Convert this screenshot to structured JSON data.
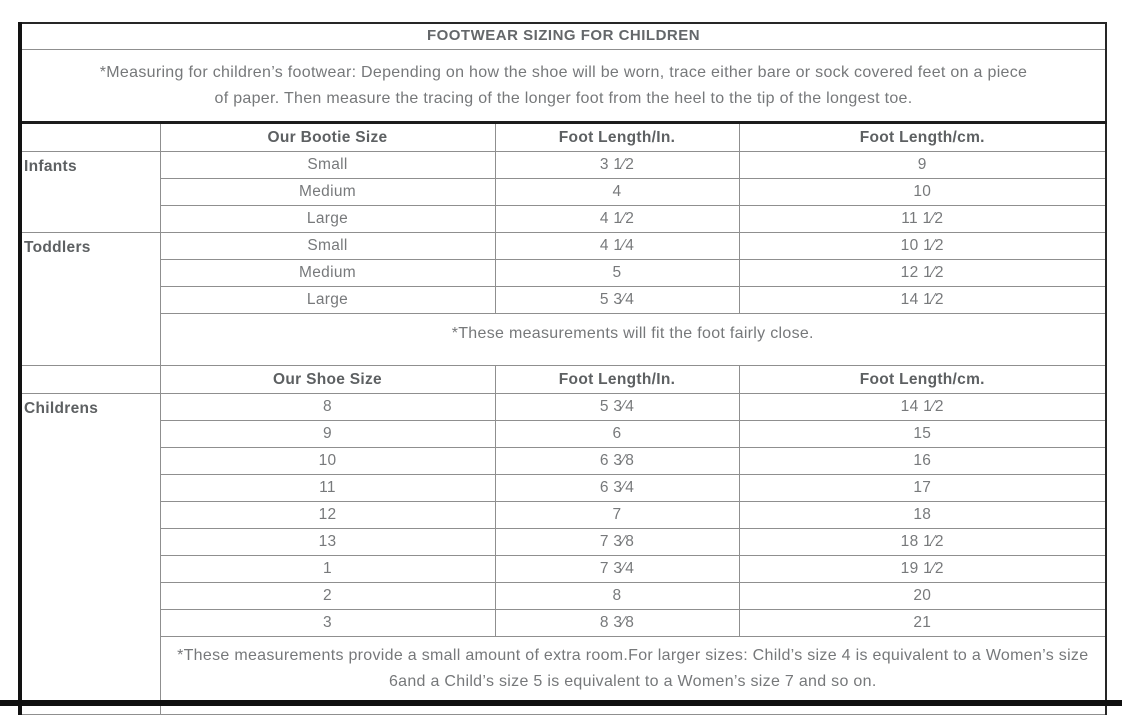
{
  "page": {
    "title": "FOOTWEAR SIZING FOR CHILDREN",
    "measuring_note": "*Measuring for children’s footwear: Depending on how the shoe will be worn, trace either bare or sock covered feet on a piece of paper. Then measure the tracing of the longer foot from the heel to the tip of the longest toe.",
    "colors": {
      "outer_border": "#121212",
      "grid_border": "#8f8f8f",
      "body_text": "#77797b",
      "bold_text": "#5d6062"
    }
  },
  "bootie_table": {
    "columns": [
      "",
      "Our Bootie Size",
      "Foot Length/In.",
      "Foot Length/cm."
    ],
    "groups": [
      {
        "label": "Infants",
        "rows": [
          {
            "size": "Small",
            "in": "3 1⁄2",
            "cm": "9"
          },
          {
            "size": "Medium",
            "in": "4",
            "cm": "10"
          },
          {
            "size": "Large",
            "in": "4 1⁄2",
            "cm": "11 1⁄2"
          }
        ]
      },
      {
        "label": "Toddlers",
        "rows": [
          {
            "size": "Small",
            "in": "4 1⁄4",
            "cm": "10 1⁄2"
          },
          {
            "size": "Medium",
            "in": "5",
            "cm": "12 1⁄2"
          },
          {
            "size": "Large",
            "in": "5 3⁄4",
            "cm": "14 1⁄2"
          }
        ]
      }
    ],
    "note": "*These measurements will fit the foot fairly close."
  },
  "shoe_table": {
    "columns": [
      "",
      "Our Shoe Size",
      "Foot Length/In.",
      "Foot Length/cm."
    ],
    "group_label": "Childrens",
    "rows": [
      {
        "size": "8",
        "in": "5 3⁄4",
        "cm": "14 1⁄2"
      },
      {
        "size": "9",
        "in": "6",
        "cm": "15"
      },
      {
        "size": "10",
        "in": "6 3⁄8",
        "cm": "16"
      },
      {
        "size": "11",
        "in": "6 3⁄4",
        "cm": "17"
      },
      {
        "size": "12",
        "in": "7",
        "cm": "18"
      },
      {
        "size": "13",
        "in": "7 3⁄8",
        "cm": "18 1⁄2"
      },
      {
        "size": "1",
        "in": "7 3⁄4",
        "cm": "19 1⁄2"
      },
      {
        "size": "2",
        "in": "8",
        "cm": "20"
      },
      {
        "size": "3",
        "in": "8 3⁄8",
        "cm": "21"
      }
    ],
    "note": "*These measurements provide a small amount of extra room.For larger sizes: Child’s size 4 is equivalent to a Women’s size 6and a Child’s size 5 is equivalent to a Women’s size 7 and so on."
  }
}
